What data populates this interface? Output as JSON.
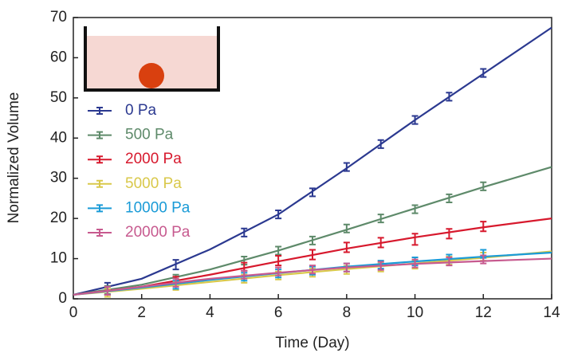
{
  "chart_data": {
    "type": "line",
    "x_label": "Time (Day)",
    "y_label": "Normalized Volume",
    "x": [
      1,
      3,
      5,
      6,
      7,
      8,
      9,
      10,
      11,
      12
    ],
    "fit_x": [
      0,
      2,
      4,
      6,
      8,
      10,
      12,
      14
    ],
    "series": [
      {
        "name": "0 Pa",
        "color": "#2b3990",
        "values": [
          3,
          8.5,
          16.5,
          21,
          26.5,
          32.8,
          38.5,
          44.5,
          50.3,
          56.2
        ],
        "errors": [
          1,
          1.2,
          1,
          1,
          1,
          1,
          1,
          1,
          1,
          1
        ],
        "fit": [
          1,
          5,
          12.3,
          21,
          32.5,
          44.5,
          56,
          67.5
        ]
      },
      {
        "name": "500 Pa",
        "color": "#5e8a6a",
        "values": [
          2.2,
          5,
          9.5,
          12,
          14.5,
          17.5,
          20,
          22.3,
          25,
          28
        ],
        "errors": [
          1,
          1,
          1,
          1,
          1,
          1,
          1,
          1,
          1,
          1
        ],
        "fit": [
          1,
          3.5,
          7.3,
          12,
          17.2,
          22.5,
          27.8,
          32.8
        ]
      },
      {
        "name": "2000 Pa",
        "color": "#d7192d",
        "values": [
          2,
          4.5,
          8,
          9.5,
          11,
          12.8,
          14,
          14.8,
          16.2,
          18
        ],
        "errors": [
          1,
          1,
          1,
          1.2,
          1.2,
          1.2,
          1.2,
          1.4,
          1.2,
          1.2
        ],
        "fit": [
          1,
          3,
          6,
          9.3,
          12.5,
          15.3,
          17.8,
          20
        ]
      },
      {
        "name": "5000 Pa",
        "color": "#d9c84a",
        "values": [
          1.5,
          3.2,
          5,
          5.8,
          6.5,
          7.2,
          7.8,
          8.5,
          9.5,
          10.5
        ],
        "errors": [
          1,
          1,
          1,
          1,
          1,
          1,
          1,
          1,
          1,
          1
        ],
        "fit": [
          1,
          2.5,
          4.2,
          5.9,
          7.4,
          8.8,
          10.2,
          11.8
        ]
      },
      {
        "name": "10000 Pa",
        "color": "#1a9bd7",
        "values": [
          2,
          3.5,
          5.5,
          6.3,
          7,
          7.8,
          8.5,
          9.3,
          10,
          11.2
        ],
        "errors": [
          1,
          1,
          1,
          1,
          1,
          1,
          1,
          1,
          1,
          1
        ],
        "fit": [
          1,
          2.8,
          4.7,
          6.4,
          8,
          9.3,
          10.5,
          11.5
        ]
      },
      {
        "name": "20000 Pa",
        "color": "#c75a8f",
        "values": [
          2,
          4,
          6,
          6.8,
          7.3,
          7.8,
          8.2,
          8.8,
          9.3,
          9.8
        ],
        "errors": [
          1,
          1,
          1,
          1,
          1,
          1,
          1,
          1,
          1,
          1
        ],
        "fit": [
          1,
          3,
          5,
          6.5,
          7.8,
          8.7,
          9.4,
          10
        ]
      }
    ],
    "xlim": [
      0,
      14
    ],
    "xticks": [
      0,
      2,
      4,
      6,
      8,
      10,
      12,
      14
    ],
    "ylim": [
      0,
      70
    ],
    "yticks": [
      0,
      10,
      20,
      30,
      40,
      50,
      60,
      70
    ]
  }
}
